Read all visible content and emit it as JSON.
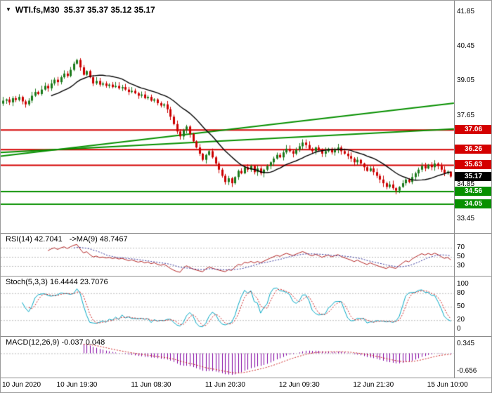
{
  "header": {
    "dropdown_icon": "▼",
    "title": "WTI.fs,M30",
    "ohlc": "35.37 35.37 35.12 35.17"
  },
  "colors": {
    "bull": "#1b7a1b",
    "bear": "#cc0000",
    "ma": "#000000",
    "resistance_line": "#d40000",
    "support_line": "#089000",
    "trend_line": "#089000",
    "rsi_line": "#b22222",
    "rsi_ma_line": "#333399",
    "stoch_k": "#00a7c4",
    "stoch_d": "#cc2222",
    "macd_hist": "#8000a0",
    "macd_signal": "#cc2222",
    "badge_current": "#000000",
    "level_line": "#bbbbbb",
    "separator": "#8c8c8c",
    "text": "#000000"
  },
  "chart_data": {
    "type": "candlestick",
    "symbol": "WTI.fs",
    "timeframe": "M30",
    "x_labels": [
      "10 Jun 2020",
      "10 Jun 19:30",
      "11 Jun 08:30",
      "11 Jun 20:30",
      "12 Jun 09:30",
      "12 Jun 21:30",
      "15 Jun 10:00"
    ],
    "main": {
      "y_ticks": [
        41.85,
        40.45,
        39.05,
        37.65,
        34.85,
        33.45
      ],
      "y_range": [
        33.2,
        42.1
      ],
      "ma_period": 16,
      "closes": [
        38.25,
        38.3,
        38.18,
        38.35,
        38.28,
        38.4,
        38.22,
        38.1,
        38.25,
        38.45,
        38.6,
        38.52,
        38.7,
        38.85,
        38.75,
        38.95,
        39.1,
        39.0,
        39.2,
        39.35,
        39.25,
        39.5,
        39.75,
        39.9,
        39.6,
        39.3,
        39.45,
        39.2,
        38.95,
        39.05,
        38.9,
        38.95,
        38.85,
        38.9,
        38.8,
        38.85,
        38.75,
        38.8,
        38.7,
        38.6,
        38.65,
        38.55,
        38.45,
        38.5,
        38.35,
        38.4,
        38.25,
        38.3,
        38.15,
        38.05,
        38.1,
        37.9,
        37.6,
        37.3,
        37.0,
        36.8,
        37.05,
        37.2,
        36.9,
        36.6,
        36.35,
        36.1,
        35.85,
        36.05,
        36.2,
        35.95,
        35.7,
        35.45,
        35.2,
        34.95,
        35.1,
        34.9,
        35.15,
        35.4,
        35.3,
        35.55,
        35.45,
        35.6,
        35.35,
        35.5,
        35.3,
        35.45,
        35.6,
        35.75,
        35.9,
        36.05,
        35.95,
        36.15,
        36.3,
        36.2,
        36.1,
        36.25,
        36.4,
        36.55,
        36.45,
        36.3,
        36.2,
        36.35,
        36.25,
        36.1,
        36.2,
        36.3,
        36.15,
        36.25,
        36.35,
        36.2,
        36.1,
        36.0,
        35.9,
        35.75,
        35.85,
        35.7,
        35.55,
        35.4,
        35.5,
        35.35,
        35.2,
        35.05,
        34.9,
        34.75,
        34.85,
        34.7,
        34.6,
        34.75,
        34.9,
        35.05,
        34.95,
        35.15,
        35.3,
        35.45,
        35.6,
        35.5,
        35.65,
        35.55,
        35.7,
        35.6,
        35.45,
        35.3,
        35.37,
        35.17
      ],
      "last_ohlc": {
        "open": 35.37,
        "high": 35.37,
        "low": 35.12,
        "close": 35.17
      },
      "resistance_levels": [
        37.06,
        36.26,
        35.63
      ],
      "support_levels": [
        34.56,
        34.05
      ],
      "current_price": 35.17,
      "trend_lines": [
        {
          "x1": 0,
          "p1": 36.0,
          "x2": 1,
          "p2": 38.15
        },
        {
          "x1": 0,
          "p1": 36.15,
          "x2": 1,
          "p2": 37.1
        }
      ]
    },
    "rsi": {
      "label": "RSI(14) 42.7041",
      "ma_label": "->MA(9) 48.7467",
      "period": 14,
      "ma_period": 9,
      "value": 42.7041,
      "ma_value": 48.7467,
      "levels": [
        70,
        50,
        30
      ]
    },
    "stoch": {
      "label": "Stoch(5,3,3) 16.4444 23.7076",
      "k_period": 5,
      "d_period": 3,
      "slowing": 3,
      "k": 16.4444,
      "d": 23.7076,
      "levels": [
        100,
        80,
        50,
        20,
        0
      ]
    },
    "macd": {
      "label": "MACD(12,26,9) -0.037 0.048",
      "fast": 12,
      "slow": 26,
      "signal_period": 9,
      "value": -0.037,
      "signal": 0.048,
      "y_ticks": [
        0.345,
        -0.656
      ]
    }
  }
}
